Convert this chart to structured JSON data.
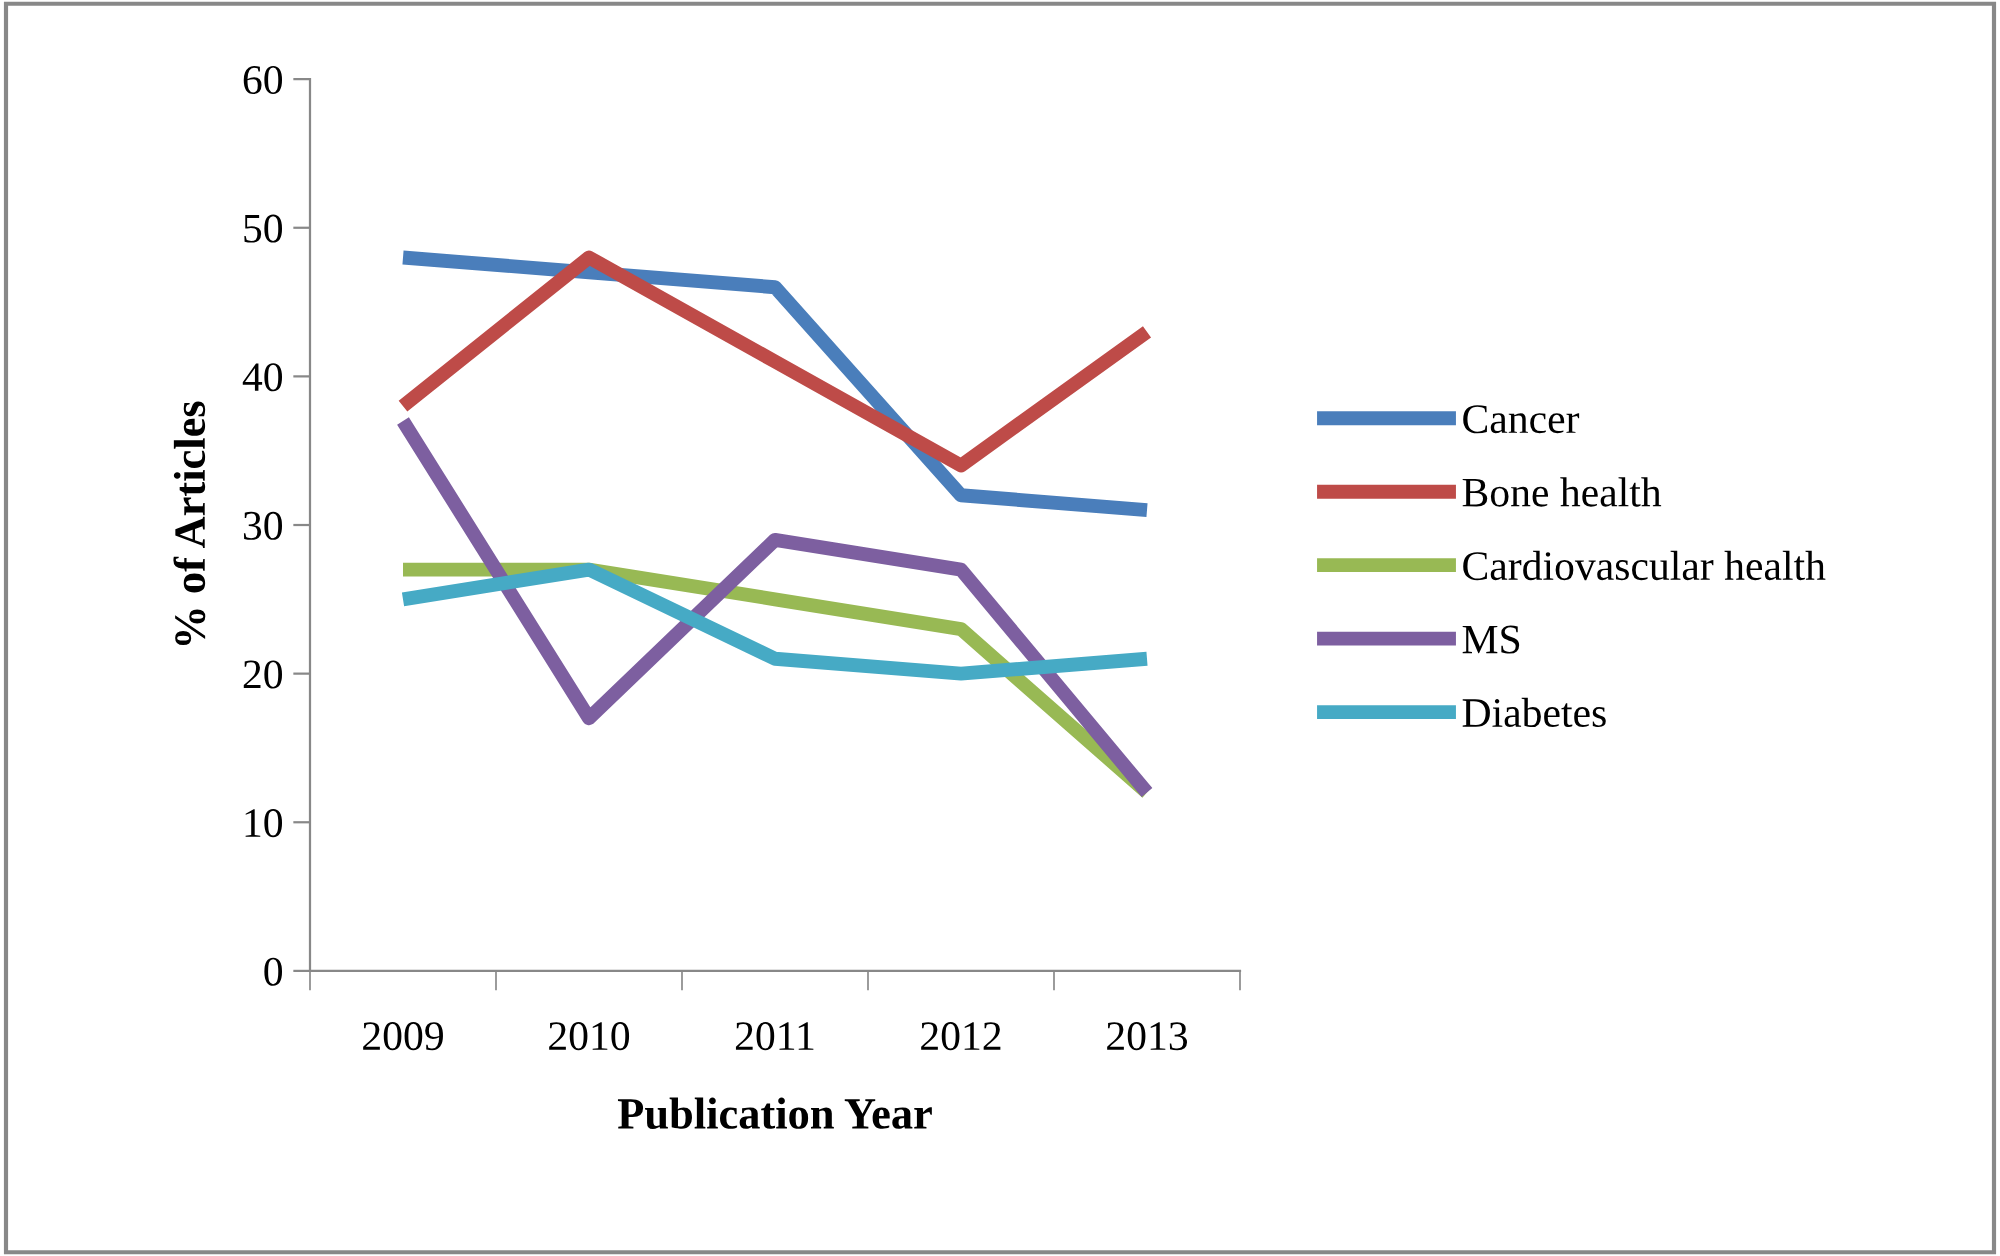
{
  "chart_data": {
    "type": "line",
    "xlabel": "Publication Year",
    "ylabel": "% of Articles",
    "categories": [
      "2009",
      "2010",
      "2011",
      "2012",
      "2013"
    ],
    "series": [
      {
        "name": "Cancer",
        "color": "#4a7ebb",
        "values": [
          48,
          47,
          46,
          32,
          31
        ]
      },
      {
        "name": "Bone health",
        "color": "#be4b48",
        "values": [
          38,
          48,
          41,
          34,
          43
        ]
      },
      {
        "name": "Cardiovascular health",
        "color": "#98b954",
        "values": [
          27,
          27,
          25,
          23,
          12
        ]
      },
      {
        "name": "MS",
        "color": "#7d5fa0",
        "values": [
          37,
          17,
          29,
          27,
          12
        ]
      },
      {
        "name": "Diabetes",
        "color": "#46aac5",
        "values": [
          25,
          27,
          21,
          20,
          21
        ]
      }
    ],
    "ylim": [
      0,
      60
    ],
    "yticks": [
      0,
      10,
      20,
      30,
      40,
      50,
      60
    ],
    "grid": false,
    "legend": "right",
    "marker": "none",
    "line_style": "solid"
  }
}
